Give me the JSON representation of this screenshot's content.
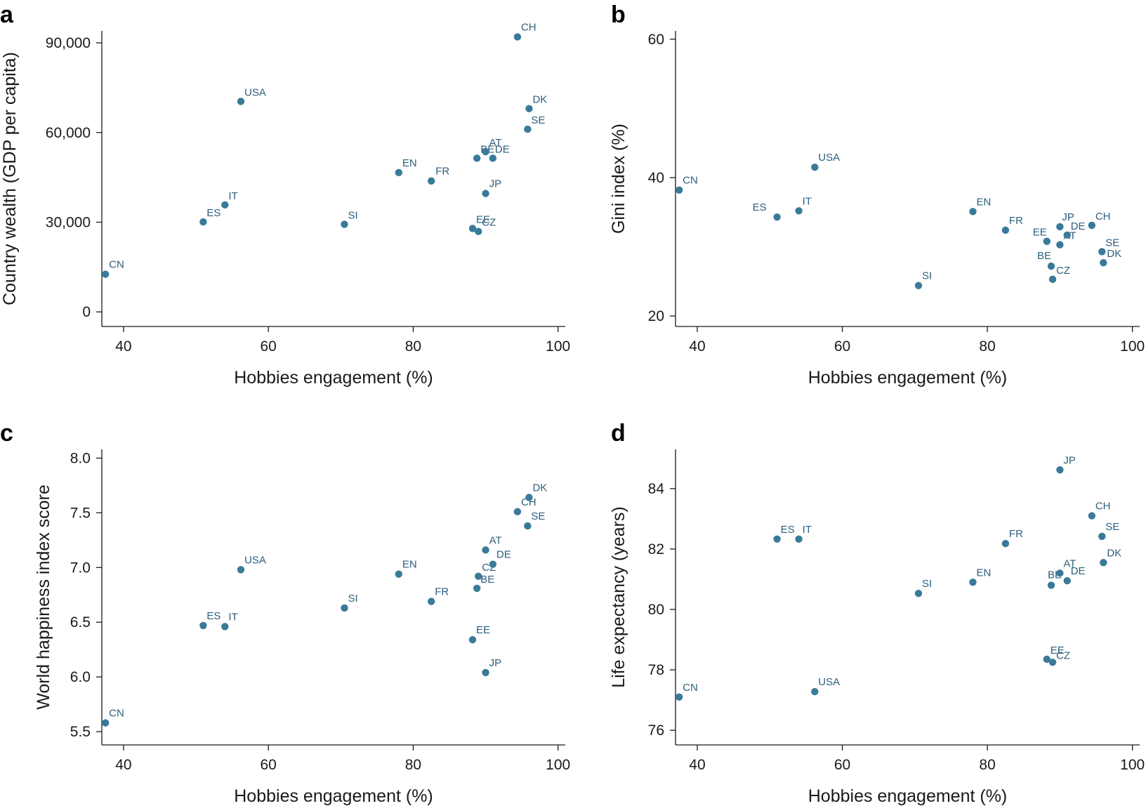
{
  "colors": {
    "point": "#3a7a99",
    "label": "#2c5f7c"
  },
  "chart_data": [
    {
      "panel": "a",
      "type": "scatter",
      "xlabel": "Hobbies engagement (%)",
      "ylabel": "Country wealth (GDP per capita)",
      "xlim": [
        37,
        101
      ],
      "ylim": [
        -3000,
        94000
      ],
      "xticks": [
        40,
        60,
        80,
        100
      ],
      "yticks": [
        0,
        30000,
        60000,
        90000
      ],
      "ytick_labels": [
        "0",
        "30,000",
        "60,000",
        "90,000"
      ],
      "points": [
        {
          "label": "CN",
          "x": 37.5,
          "y": 12600
        },
        {
          "label": "ES",
          "x": 51,
          "y": 30100
        },
        {
          "label": "IT",
          "x": 54,
          "y": 35800
        },
        {
          "label": "USA",
          "x": 56.2,
          "y": 70400
        },
        {
          "label": "SI",
          "x": 70.5,
          "y": 29300
        },
        {
          "label": "EN",
          "x": 78,
          "y": 46600
        },
        {
          "label": "FR",
          "x": 82.5,
          "y": 43800
        },
        {
          "label": "EE",
          "x": 88.2,
          "y": 27900
        },
        {
          "label": "CZ",
          "x": 89,
          "y": 26900
        },
        {
          "label": "BE",
          "x": 88.8,
          "y": 51400
        },
        {
          "label": "AT",
          "x": 90,
          "y": 53600
        },
        {
          "label": "DE",
          "x": 91,
          "y": 51400
        },
        {
          "label": "JP",
          "x": 90,
          "y": 39600
        },
        {
          "label": "CH",
          "x": 94.4,
          "y": 92000
        },
        {
          "label": "SE",
          "x": 95.8,
          "y": 61100
        },
        {
          "label": "DK",
          "x": 96,
          "y": 68000
        }
      ]
    },
    {
      "panel": "b",
      "type": "scatter",
      "xlabel": "Hobbies engagement (%)",
      "ylabel": "Gini index (%)",
      "xlim": [
        37,
        101
      ],
      "ylim": [
        19.3,
        61.2
      ],
      "xticks": [
        40,
        60,
        80,
        100
      ],
      "yticks": [
        20,
        40,
        60
      ],
      "ytick_labels": [
        "20",
        "40",
        "60"
      ],
      "points": [
        {
          "label": "CN",
          "x": 37.5,
          "y": 38.2
        },
        {
          "label": "ES",
          "x": 51,
          "y": 34.3
        },
        {
          "label": "IT",
          "x": 54,
          "y": 35.2
        },
        {
          "label": "USA",
          "x": 56.2,
          "y": 41.5
        },
        {
          "label": "SI",
          "x": 70.5,
          "y": 24.4
        },
        {
          "label": "EN",
          "x": 78,
          "y": 35.1
        },
        {
          "label": "FR",
          "x": 82.5,
          "y": 32.4
        },
        {
          "label": "EE",
          "x": 88.2,
          "y": 30.8
        },
        {
          "label": "CZ",
          "x": 89,
          "y": 25.3
        },
        {
          "label": "BE",
          "x": 88.8,
          "y": 27.2
        },
        {
          "label": "AT",
          "x": 90,
          "y": 30.3
        },
        {
          "label": "DE",
          "x": 91,
          "y": 31.7
        },
        {
          "label": "JP",
          "x": 90,
          "y": 32.9
        },
        {
          "label": "CH",
          "x": 94.4,
          "y": 33.1
        },
        {
          "label": "SE",
          "x": 95.8,
          "y": 29.3
        },
        {
          "label": "DK",
          "x": 96,
          "y": 27.7
        }
      ]
    },
    {
      "panel": "c",
      "type": "scatter",
      "xlabel": "Hobbies engagement (%)",
      "ylabel": "World happiness index score",
      "xlim": [
        37,
        101
      ],
      "ylim": [
        5.43,
        8.08
      ],
      "xticks": [
        40,
        60,
        80,
        100
      ],
      "yticks": [
        5.5,
        6.0,
        6.5,
        7.0,
        7.5,
        8.0
      ],
      "ytick_labels": [
        "5.5",
        "6.0",
        "6.5",
        "7.0",
        "7.5",
        "8.0"
      ],
      "points": [
        {
          "label": "CN",
          "x": 37.5,
          "y": 5.58
        },
        {
          "label": "ES",
          "x": 51,
          "y": 6.47
        },
        {
          "label": "IT",
          "x": 54,
          "y": 6.46
        },
        {
          "label": "USA",
          "x": 56.2,
          "y": 6.98
        },
        {
          "label": "SI",
          "x": 70.5,
          "y": 6.63
        },
        {
          "label": "EN",
          "x": 78,
          "y": 6.94
        },
        {
          "label": "FR",
          "x": 82.5,
          "y": 6.69
        },
        {
          "label": "EE",
          "x": 88.2,
          "y": 6.34
        },
        {
          "label": "CZ",
          "x": 89,
          "y": 6.92
        },
        {
          "label": "BE",
          "x": 88.8,
          "y": 6.81
        },
        {
          "label": "AT",
          "x": 90,
          "y": 7.16
        },
        {
          "label": "DE",
          "x": 91,
          "y": 7.03
        },
        {
          "label": "JP",
          "x": 90,
          "y": 6.04
        },
        {
          "label": "CH",
          "x": 94.4,
          "y": 7.51
        },
        {
          "label": "SE",
          "x": 95.8,
          "y": 7.38
        },
        {
          "label": "DK",
          "x": 96,
          "y": 7.64
        }
      ]
    },
    {
      "panel": "d",
      "type": "scatter",
      "xlabel": "Hobbies engagement (%)",
      "ylabel": "Life expectancy (years)",
      "xlim": [
        37,
        101
      ],
      "ylim": [
        75.7,
        85.3
      ],
      "xticks": [
        40,
        60,
        80,
        100
      ],
      "yticks": [
        76,
        78,
        80,
        82,
        84
      ],
      "ytick_labels": [
        "76",
        "78",
        "80",
        "82",
        "84"
      ],
      "points": [
        {
          "label": "CN",
          "x": 37.5,
          "y": 77.1
        },
        {
          "label": "ES",
          "x": 51,
          "y": 82.33
        },
        {
          "label": "IT",
          "x": 54,
          "y": 82.33
        },
        {
          "label": "USA",
          "x": 56.2,
          "y": 77.28
        },
        {
          "label": "SI",
          "x": 70.5,
          "y": 80.53
        },
        {
          "label": "EN",
          "x": 78,
          "y": 80.9
        },
        {
          "label": "FR",
          "x": 82.5,
          "y": 82.18
        },
        {
          "label": "EE",
          "x": 88.2,
          "y": 78.35
        },
        {
          "label": "CZ",
          "x": 89,
          "y": 78.25
        },
        {
          "label": "BE",
          "x": 88.8,
          "y": 80.8
        },
        {
          "label": "AT",
          "x": 90,
          "y": 81.2
        },
        {
          "label": "DE",
          "x": 91,
          "y": 80.95
        },
        {
          "label": "JP",
          "x": 90,
          "y": 84.62
        },
        {
          "label": "CH",
          "x": 94.4,
          "y": 83.1
        },
        {
          "label": "SE",
          "x": 95.8,
          "y": 82.42
        },
        {
          "label": "DK",
          "x": 96,
          "y": 81.55
        }
      ]
    }
  ]
}
